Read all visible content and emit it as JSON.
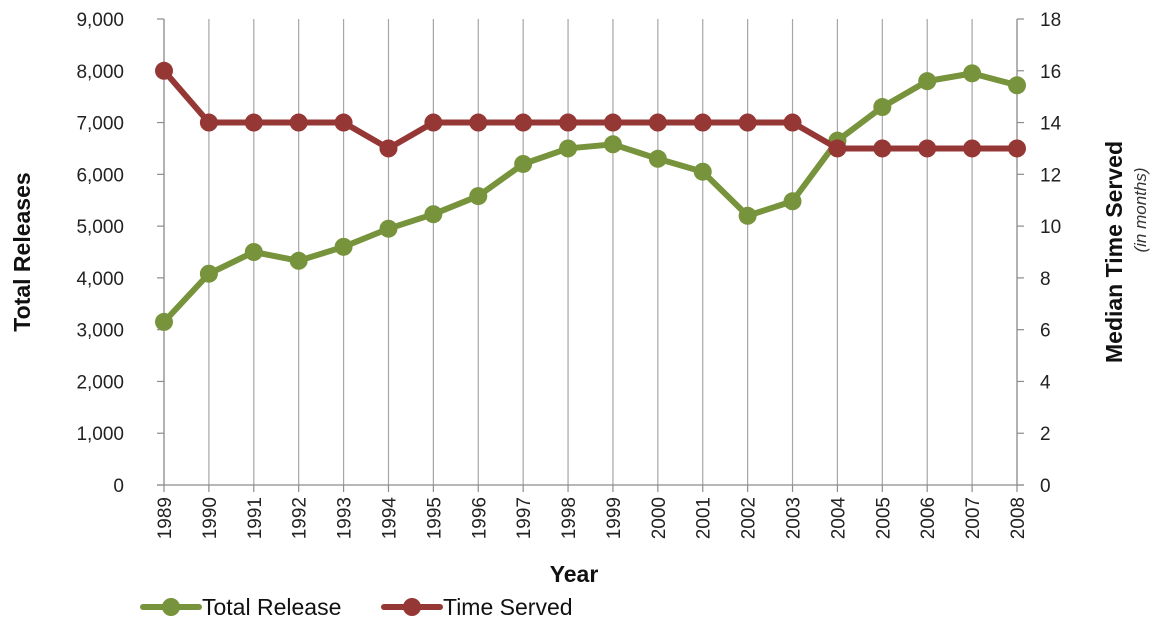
{
  "chart_data": {
    "type": "line",
    "categories": [
      "1989",
      "1990",
      "1991",
      "1992",
      "1993",
      "1994",
      "1995",
      "1996",
      "1997",
      "1998",
      "1999",
      "2000",
      "2001",
      "2002",
      "2003",
      "2004",
      "2005",
      "2006",
      "2007",
      "2008"
    ],
    "series": [
      {
        "name": "Total Release",
        "axis": "left",
        "color": "#77933c",
        "values": [
          3150,
          4080,
          4500,
          4330,
          4600,
          4950,
          5230,
          5580,
          6200,
          6500,
          6580,
          6300,
          6050,
          5200,
          5480,
          6650,
          7300,
          7800,
          7950,
          7720
        ]
      },
      {
        "name": "Time Served",
        "axis": "right",
        "color": "#953735",
        "values": [
          16,
          14,
          14,
          14,
          14,
          13,
          14,
          14,
          14,
          14,
          14,
          14,
          14,
          14,
          14,
          13,
          13,
          13,
          13,
          13
        ]
      }
    ],
    "xlabel": "Year",
    "ylabel": "Total Releases",
    "y2label": "Median Time Served",
    "y2label_sub": "(in months)",
    "ylim": [
      0,
      9000
    ],
    "y2lim": [
      0,
      18
    ],
    "yticks": [
      "0",
      "1,000",
      "2,000",
      "3,000",
      "4,000",
      "5,000",
      "6,000",
      "7,000",
      "8,000",
      "9,000"
    ],
    "y2ticks": [
      "0",
      "2",
      "4",
      "6",
      "8",
      "10",
      "12",
      "14",
      "16",
      "18"
    ],
    "grid": "vertical",
    "legend_position": "bottom-left"
  }
}
